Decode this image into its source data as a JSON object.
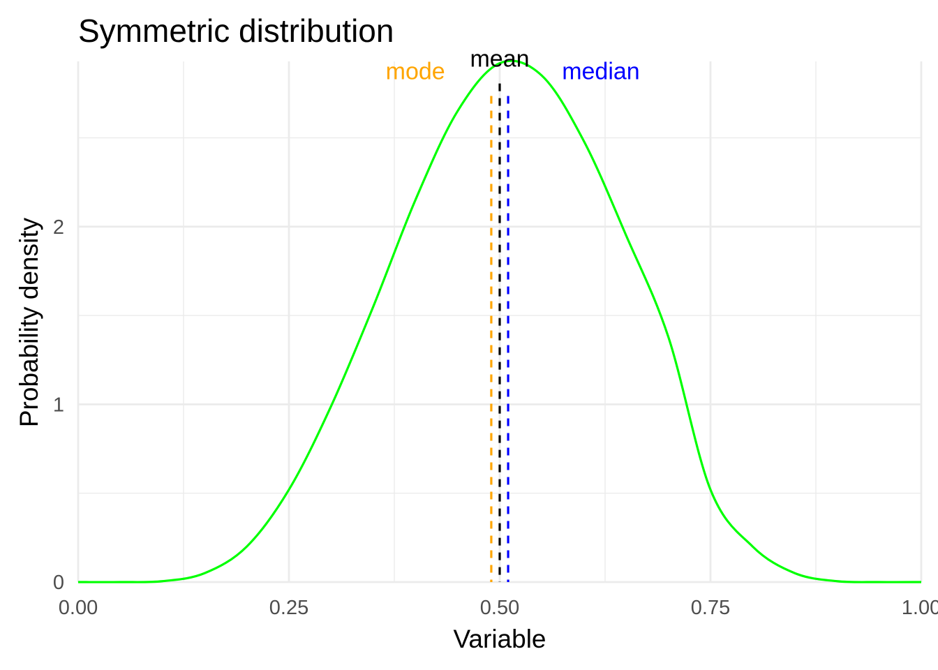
{
  "chart_data": {
    "type": "line",
    "title": "Symmetric distribution",
    "xlabel": "Variable",
    "ylabel": "Probability density",
    "xlim": [
      0,
      1
    ],
    "ylim": [
      0,
      2.93
    ],
    "grid": true,
    "x_ticks": [
      {
        "value": 0.0,
        "label": "0.00"
      },
      {
        "value": 0.25,
        "label": "0.25"
      },
      {
        "value": 0.5,
        "label": "0.50"
      },
      {
        "value": 0.75,
        "label": "0.75"
      },
      {
        "value": 1.0,
        "label": "1.00"
      }
    ],
    "y_ticks": [
      {
        "value": 0,
        "label": "0"
      },
      {
        "value": 1,
        "label": "1"
      },
      {
        "value": 2,
        "label": "2"
      }
    ],
    "series": [
      {
        "color": "#00ff00",
        "x": [
          0.0,
          0.05,
          0.1,
          0.15,
          0.2,
          0.25,
          0.3,
          0.35,
          0.4,
          0.45,
          0.5,
          0.55,
          0.6,
          0.65,
          0.7,
          0.75,
          0.8,
          0.85,
          0.9,
          0.95,
          1.0
        ],
        "y": [
          0.0,
          0.0,
          0.005,
          0.05,
          0.2,
          0.52,
          0.99,
          1.55,
          2.15,
          2.65,
          2.92,
          2.85,
          2.48,
          1.95,
          1.38,
          0.52,
          0.2,
          0.05,
          0.005,
          0.0,
          0.0
        ]
      }
    ],
    "annotations": [
      {
        "label": "mode",
        "x": 0.49,
        "color": "#ffa500",
        "label_x": 0.4,
        "label_y": 2.83
      },
      {
        "label": "mean",
        "x": 0.5,
        "color": "#000000",
        "label_x": 0.5,
        "label_y": 2.9
      },
      {
        "label": "median",
        "x": 0.51,
        "color": "#0000ff",
        "label_x": 0.62,
        "label_y": 2.83
      }
    ]
  }
}
